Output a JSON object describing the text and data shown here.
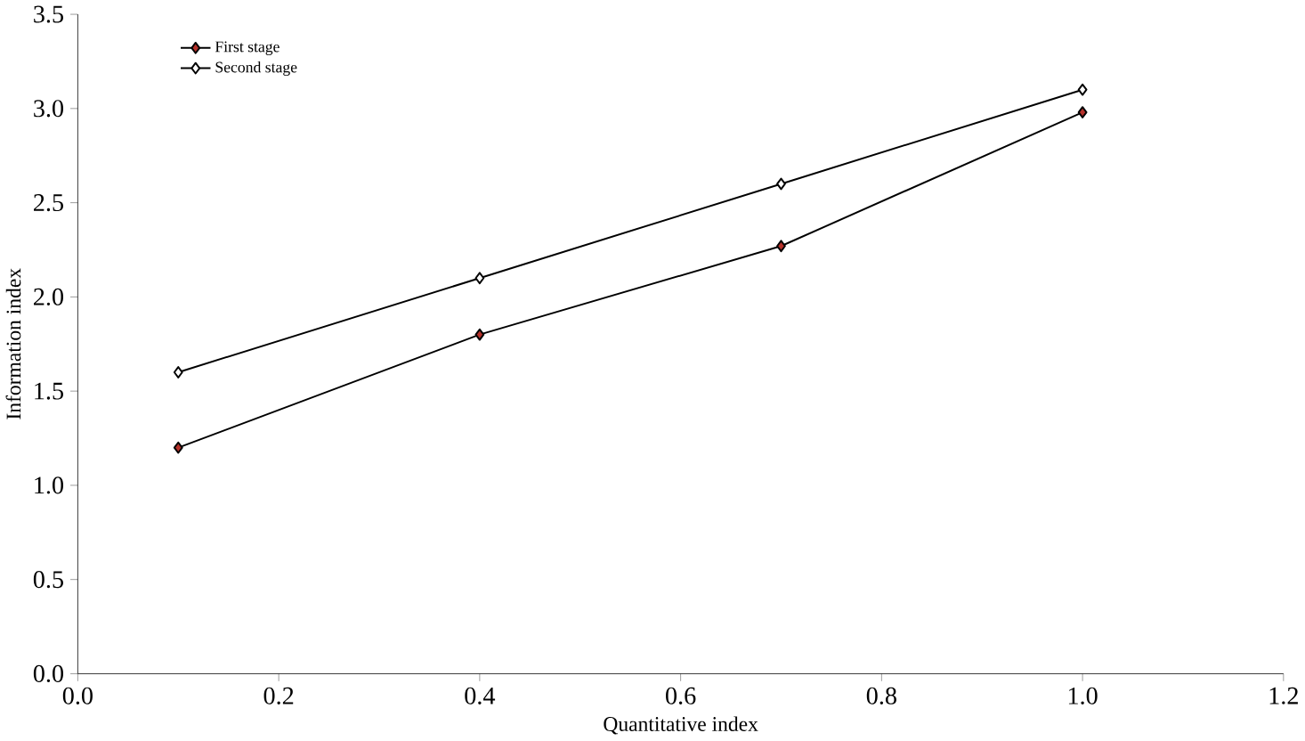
{
  "chart_data": {
    "type": "line",
    "xlabel": "Quantitative index",
    "ylabel": "Information index",
    "x": [
      0.1,
      0.4,
      0.7,
      1.0
    ],
    "series": [
      {
        "name": "First stage",
        "color": "#b5312a",
        "values": [
          1.2,
          1.8,
          2.27,
          2.98
        ]
      },
      {
        "name": "Second stage",
        "color": "#ffffff",
        "values": [
          1.6,
          2.1,
          2.6,
          3.1
        ]
      }
    ],
    "xlim": [
      0,
      1.2
    ],
    "xticks": [
      {
        "value": 0,
        "label": "0.0"
      },
      0.2,
      0.4,
      0.6,
      0.8,
      {
        "value": 1,
        "label": "1.0"
      },
      1.2
    ],
    "ylim": [
      0,
      3.5
    ],
    "yticks": [
      {
        "value": 0,
        "label": "0.0"
      },
      0.5,
      {
        "value": 1,
        "label": "1.0"
      },
      1.5,
      {
        "value": 2,
        "label": "2.0"
      },
      2.5,
      {
        "value": 3,
        "label": "3.0"
      },
      3.5
    ],
    "legend": "top left",
    "marker": "diamond",
    "grid": false
  }
}
